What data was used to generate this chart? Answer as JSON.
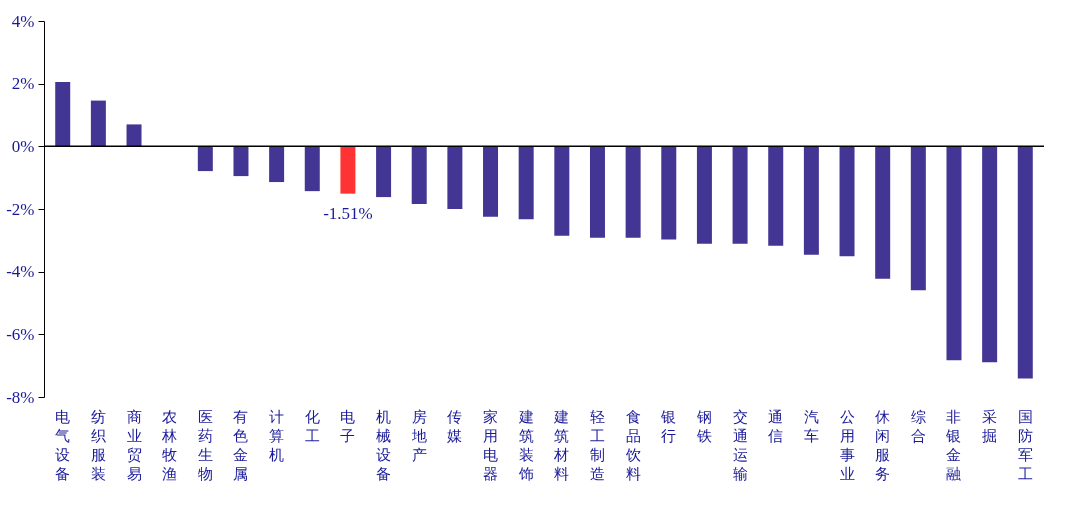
{
  "chart_data": {
    "type": "bar",
    "categories": [
      "电气设备",
      "纺织服装",
      "商业贸易",
      "农林牧渔",
      "医药生物",
      "有色金属",
      "计算机",
      "化工",
      "电子",
      "机械设备",
      "房地产",
      "传媒",
      "家用电器",
      "建筑装饰",
      "建筑材料",
      "轻工制造",
      "食品饮料",
      "银行",
      "钢铁",
      "交通运输",
      "通信",
      "汽车",
      "公用事业",
      "休闲服务",
      "综合",
      "非银金融",
      "采掘",
      "国防军工"
    ],
    "values": [
      2.05,
      1.46,
      0.7,
      0.0,
      -0.79,
      -0.95,
      -1.14,
      -1.43,
      -1.51,
      -1.62,
      -1.84,
      -2.0,
      -2.25,
      -2.33,
      -2.85,
      -2.92,
      -2.92,
      -2.97,
      -3.11,
      -3.11,
      -3.17,
      -3.46,
      -3.51,
      -4.23,
      -4.59,
      -6.83,
      -6.89,
      -7.41
    ],
    "colors": [
      "#433593",
      "#433593",
      "#433593",
      "#433593",
      "#433593",
      "#433593",
      "#433593",
      "#433593",
      "#ff3333",
      "#433593",
      "#433593",
      "#433593",
      "#433593",
      "#433593",
      "#433593",
      "#433593",
      "#433593",
      "#433593",
      "#433593",
      "#433593",
      "#433593",
      "#433593",
      "#433593",
      "#433593",
      "#433593",
      "#433593",
      "#433593",
      "#433593"
    ],
    "value_labels": [
      null,
      null,
      null,
      null,
      null,
      null,
      null,
      null,
      "-1.51%",
      null,
      null,
      null,
      null,
      null,
      null,
      null,
      null,
      null,
      null,
      null,
      null,
      null,
      null,
      null,
      null,
      null,
      null,
      null
    ],
    "ylim": [
      -8,
      4
    ],
    "yticks": [
      {
        "value": 4,
        "label": "4%"
      },
      {
        "value": 2,
        "label": "2%"
      },
      {
        "value": 0,
        "label": "0%"
      },
      {
        "value": -2,
        "label": "-2%"
      },
      {
        "value": -4,
        "label": "-4%"
      },
      {
        "value": -6,
        "label": "-6%"
      },
      {
        "value": -8,
        "label": "-8%"
      }
    ],
    "data_labels": false
  }
}
